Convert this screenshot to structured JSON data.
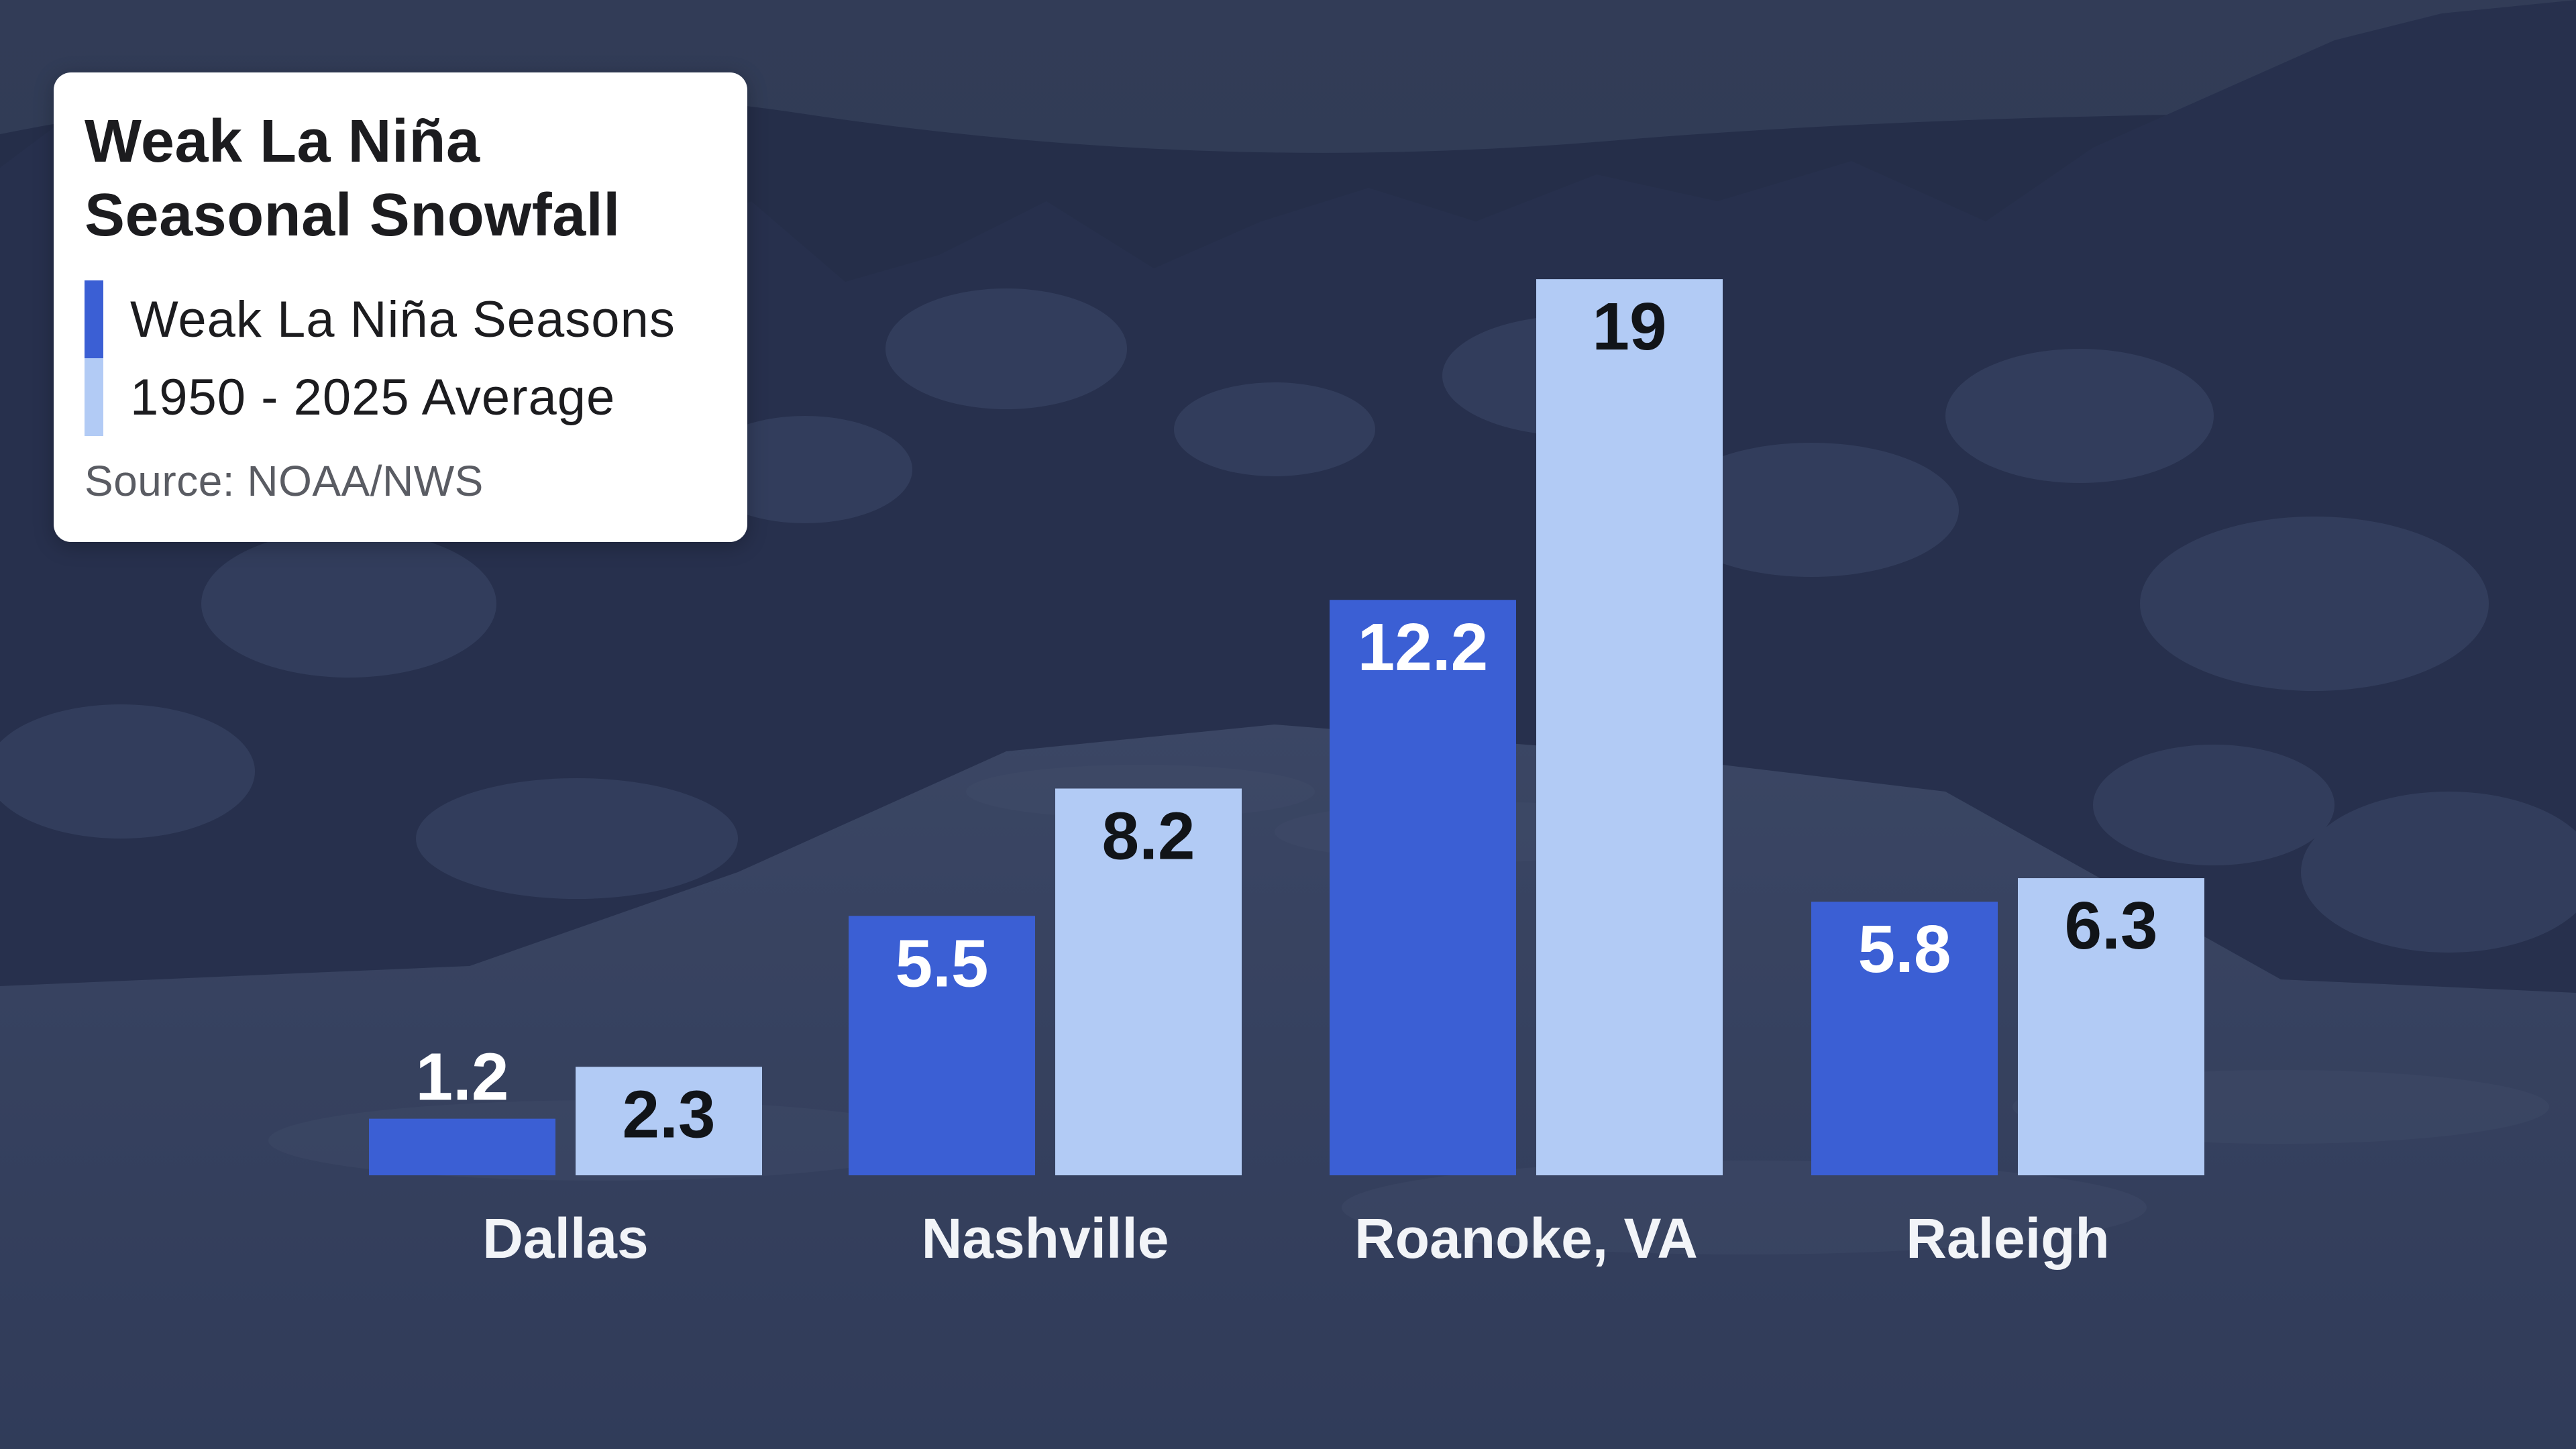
{
  "colors": {
    "series_primary": "#3b5fd4",
    "series_secondary": "#b2cbf5",
    "label_on_dark": "#ffffff",
    "label_on_light": "#111418",
    "category_label": "#f2f4f8"
  },
  "legend": {
    "title_line1": "Weak La Niña",
    "title_line2": "Seasonal Snowfall",
    "source": "Source: NOAA/NWS"
  },
  "chart_data": {
    "type": "bar",
    "title": "Weak La Niña Seasonal Snowfall",
    "xlabel": "",
    "ylabel": "",
    "ylim": [
      0,
      20
    ],
    "grid": false,
    "legend_position": "top-left",
    "categories": [
      "Dallas",
      "Nashville",
      "Roanoke, VA",
      "Raleigh"
    ],
    "series": [
      {
        "name": "Weak La Niña Seasons",
        "values": [
          1.2,
          5.5,
          12.2,
          5.8
        ]
      },
      {
        "name": "1950 - 2025 Average",
        "values": [
          2.3,
          8.2,
          19,
          6.3
        ]
      }
    ],
    "value_labels": [
      [
        "1.2",
        "5.5",
        "12.2",
        "5.8"
      ],
      [
        "2.3",
        "8.2",
        "19",
        "6.3"
      ]
    ]
  }
}
